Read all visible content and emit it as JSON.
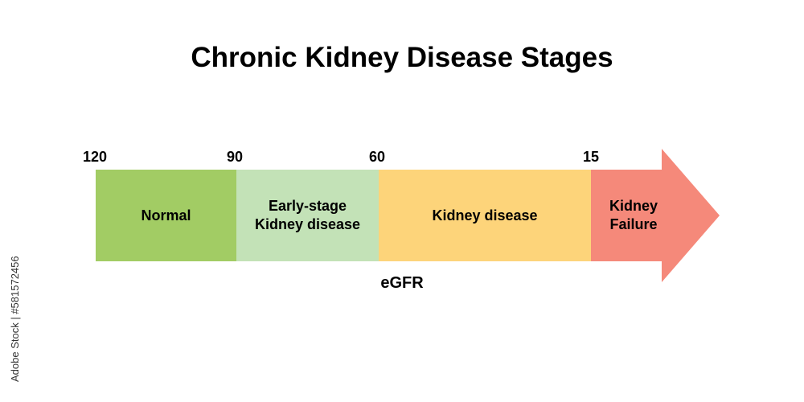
{
  "title": "Chronic Kidney Disease Stages",
  "axis_label": "eGFR",
  "ticks": [
    "120",
    "90",
    "60",
    "15"
  ],
  "stages": [
    {
      "label": "Normal",
      "color": "#a2cc64"
    },
    {
      "label": "Early-stage\nKidney disease",
      "color": "#c3e2b7"
    },
    {
      "label": "Kidney disease",
      "color": "#fdd47a"
    },
    {
      "label": "Kidney\nFailure",
      "color": "#f5897a"
    }
  ],
  "watermark_id": "Adobe Stock | #581572456"
}
